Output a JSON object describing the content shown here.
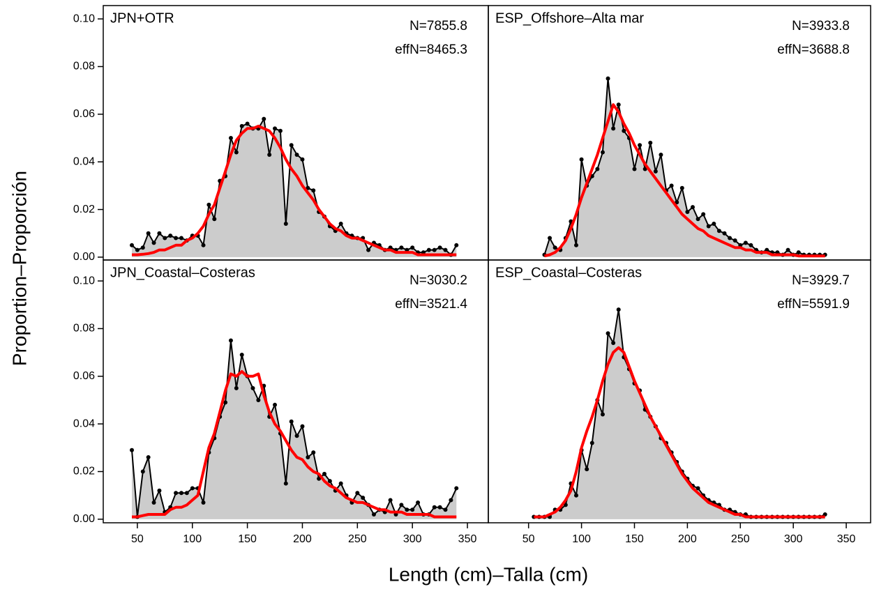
{
  "ylabel": "Proportion–Proporción",
  "xlabel": "Length (cm)–Talla (cm)",
  "chart_data": [
    {
      "type": "area",
      "title": "JPN+OTR",
      "annotations": [
        "N=7855.8",
        "effN=8465.3"
      ],
      "x": [
        45,
        50,
        55,
        60,
        65,
        70,
        75,
        80,
        85,
        90,
        95,
        100,
        105,
        110,
        115,
        120,
        125,
        130,
        135,
        140,
        145,
        150,
        155,
        160,
        165,
        170,
        175,
        180,
        185,
        190,
        195,
        200,
        205,
        210,
        215,
        220,
        225,
        230,
        235,
        240,
        245,
        250,
        255,
        260,
        265,
        270,
        275,
        280,
        285,
        290,
        295,
        300,
        305,
        310,
        315,
        320,
        325,
        330,
        335,
        340
      ],
      "series": [
        {
          "color": "#000000",
          "fill": "#cccccc",
          "markers": true,
          "values": [
            0.005,
            0.003,
            0.004,
            0.01,
            0.006,
            0.01,
            0.008,
            0.009,
            0.008,
            0.008,
            0.007,
            0.009,
            0.009,
            0.005,
            0.022,
            0.016,
            0.032,
            0.034,
            0.05,
            0.044,
            0.055,
            0.056,
            0.054,
            0.054,
            0.058,
            0.043,
            0.054,
            0.053,
            0.014,
            0.047,
            0.043,
            0.041,
            0.029,
            0.028,
            0.019,
            0.017,
            0.013,
            0.011,
            0.014,
            0.01,
            0.009,
            0.008,
            0.008,
            0.003,
            0.006,
            0.005,
            0.003,
            0.004,
            0.003,
            0.004,
            0.003,
            0.004,
            0.002,
            0.002,
            0.003,
            0.003,
            0.004,
            0.003,
            0.001,
            0.005
          ]
        },
        {
          "color": "#ff0000",
          "values": [
            0.001,
            0.001,
            0.0012,
            0.0015,
            0.002,
            0.003,
            0.003,
            0.004,
            0.005,
            0.005,
            0.007,
            0.008,
            0.01,
            0.013,
            0.018,
            0.022,
            0.029,
            0.036,
            0.043,
            0.049,
            0.052,
            0.054,
            0.054,
            0.055,
            0.054,
            0.053,
            0.05,
            0.046,
            0.041,
            0.037,
            0.034,
            0.03,
            0.027,
            0.024,
            0.02,
            0.017,
            0.014,
            0.012,
            0.011,
            0.009,
            0.008,
            0.008,
            0.007,
            0.006,
            0.005,
            0.004,
            0.003,
            0.003,
            0.002,
            0.002,
            0.002,
            0.002,
            0.001,
            0.001,
            0.001,
            0.001,
            0.001,
            0.001,
            0.001,
            0.001
          ]
        }
      ],
      "xlim": [
        19,
        369
      ],
      "ylim": [
        -0.0012,
        0.1056
      ],
      "yticks": [
        {
          "value": 0,
          "label": "0.00"
        },
        {
          "value": 0.02,
          "label": "0.02"
        },
        {
          "value": 0.04,
          "label": "0.04"
        },
        {
          "value": 0.06,
          "label": "0.06"
        },
        {
          "value": 0.08,
          "label": "0.08"
        },
        {
          "value": 0.1,
          "label": "0.10"
        }
      ]
    },
    {
      "type": "area",
      "title": "ESP_Offshore–Alta mar",
      "annotations": [
        "N=3933.8",
        "effN=3688.8"
      ],
      "x": [
        65,
        70,
        75,
        80,
        85,
        90,
        95,
        100,
        105,
        110,
        115,
        120,
        125,
        130,
        135,
        140,
        145,
        150,
        155,
        160,
        165,
        170,
        175,
        180,
        185,
        190,
        195,
        200,
        205,
        210,
        215,
        220,
        225,
        230,
        235,
        240,
        245,
        250,
        255,
        260,
        265,
        270,
        275,
        280,
        285,
        290,
        295,
        300,
        305,
        310,
        315,
        320,
        325,
        330
      ],
      "series": [
        {
          "color": "#000000",
          "fill": "#cccccc",
          "markers": true,
          "values": [
            0.001,
            0.008,
            0.004,
            0.003,
            0.008,
            0.015,
            0.005,
            0.041,
            0.03,
            0.034,
            0.037,
            0.044,
            0.075,
            0.054,
            0.064,
            0.053,
            0.05,
            0.037,
            0.047,
            0.037,
            0.048,
            0.036,
            0.043,
            0.028,
            0.03,
            0.023,
            0.029,
            0.019,
            0.021,
            0.016,
            0.018,
            0.013,
            0.014,
            0.011,
            0.01,
            0.008,
            0.007,
            0.005,
            0.006,
            0.005,
            0.003,
            0.002,
            0.003,
            0.002,
            0.002,
            0.001,
            0.003,
            0.001,
            0.002,
            0.001,
            0.001,
            0.001,
            0.001,
            0.001
          ]
        },
        {
          "color": "#ff0000",
          "values": [
            0.0005,
            0.001,
            0.002,
            0.004,
            0.007,
            0.012,
            0.018,
            0.025,
            0.031,
            0.037,
            0.043,
            0.05,
            0.057,
            0.064,
            0.061,
            0.056,
            0.052,
            0.047,
            0.043,
            0.039,
            0.036,
            0.033,
            0.03,
            0.027,
            0.024,
            0.021,
            0.018,
            0.016,
            0.014,
            0.012,
            0.011,
            0.009,
            0.008,
            0.007,
            0.006,
            0.005,
            0.004,
            0.004,
            0.003,
            0.003,
            0.002,
            0.002,
            0.002,
            0.001,
            0.001,
            0.001,
            0.001,
            0.001,
            0.0005,
            0.0005,
            0.0005,
            0.0005,
            0.0005,
            0.0005
          ]
        }
      ],
      "xlim": [
        12,
        373
      ],
      "ylim": [
        -0.0012,
        0.1056
      ]
    },
    {
      "type": "area",
      "title": "JPN_Coastal–Costeras",
      "annotations": [
        "N=3030.2",
        "effN=3521.4"
      ],
      "x": [
        45,
        50,
        55,
        60,
        65,
        70,
        75,
        80,
        85,
        90,
        95,
        100,
        105,
        110,
        115,
        120,
        125,
        130,
        135,
        140,
        145,
        150,
        155,
        160,
        165,
        170,
        175,
        180,
        185,
        190,
        195,
        200,
        205,
        210,
        215,
        220,
        225,
        230,
        235,
        240,
        245,
        250,
        255,
        260,
        265,
        270,
        275,
        280,
        285,
        290,
        295,
        300,
        305,
        310,
        315,
        320,
        325,
        330,
        335,
        340
      ],
      "series": [
        {
          "color": "#000000",
          "fill": "#cccccc",
          "markers": true,
          "values": [
            0.029,
            0.001,
            0.02,
            0.026,
            0.007,
            0.012,
            0.003,
            0.005,
            0.011,
            0.011,
            0.011,
            0.013,
            0.013,
            0.007,
            0.028,
            0.034,
            0.043,
            0.049,
            0.075,
            0.055,
            0.069,
            0.06,
            0.055,
            0.05,
            0.056,
            0.043,
            0.048,
            0.036,
            0.015,
            0.041,
            0.035,
            0.039,
            0.026,
            0.028,
            0.017,
            0.019,
            0.016,
            0.012,
            0.015,
            0.01,
            0.007,
            0.011,
            0.009,
            0.006,
            0.002,
            0.004,
            0.003,
            0.008,
            0.002,
            0.006,
            0.004,
            0.004,
            0.007,
            0.002,
            0.002,
            0.005,
            0.005,
            0.004,
            0.008,
            0.013
          ]
        },
        {
          "color": "#ff0000",
          "values": [
            0.001,
            0.001,
            0.0015,
            0.002,
            0.002,
            0.002,
            0.002,
            0.004,
            0.005,
            0.005,
            0.006,
            0.008,
            0.01,
            0.02,
            0.03,
            0.036,
            0.045,
            0.054,
            0.061,
            0.06,
            0.062,
            0.06,
            0.06,
            0.061,
            0.052,
            0.045,
            0.04,
            0.037,
            0.033,
            0.029,
            0.026,
            0.025,
            0.022,
            0.02,
            0.019,
            0.016,
            0.014,
            0.013,
            0.011,
            0.009,
            0.008,
            0.007,
            0.007,
            0.006,
            0.005,
            0.004,
            0.004,
            0.003,
            0.003,
            0.003,
            0.002,
            0.002,
            0.002,
            0.002,
            0.002,
            0.001,
            0.001,
            0.001,
            0.001,
            0.001
          ]
        }
      ],
      "xlim": [
        19,
        369
      ],
      "ylim": [
        -0.0015,
        0.1088
      ],
      "xticks": [
        50,
        100,
        150,
        200,
        250,
        300,
        350
      ],
      "yticks": [
        {
          "value": 0,
          "label": "0.00"
        },
        {
          "value": 0.02,
          "label": "0.02"
        },
        {
          "value": 0.04,
          "label": "0.04"
        },
        {
          "value": 0.06,
          "label": "0.06"
        },
        {
          "value": 0.08,
          "label": "0.08"
        },
        {
          "value": 0.1,
          "label": "0.10"
        }
      ]
    },
    {
      "type": "area",
      "title": "ESP_Coastal–Costeras",
      "annotations": [
        "N=3929.7",
        "effN=5591.9"
      ],
      "x": [
        55,
        60,
        65,
        70,
        75,
        80,
        85,
        90,
        95,
        100,
        105,
        110,
        115,
        120,
        125,
        130,
        135,
        140,
        145,
        150,
        155,
        160,
        165,
        170,
        175,
        180,
        185,
        190,
        195,
        200,
        205,
        210,
        215,
        220,
        225,
        230,
        235,
        240,
        245,
        250,
        255,
        260,
        265,
        270,
        275,
        280,
        285,
        290,
        295,
        300,
        305,
        310,
        315,
        320,
        325,
        330
      ],
      "series": [
        {
          "color": "#000000",
          "fill": "#cccccc",
          "markers": true,
          "values": [
            0.001,
            0.001,
            0.001,
            0.001,
            0.004,
            0.004,
            0.006,
            0.015,
            0.01,
            0.029,
            0.021,
            0.032,
            0.05,
            0.044,
            0.078,
            0.074,
            0.088,
            0.068,
            0.063,
            0.057,
            0.054,
            0.046,
            0.043,
            0.039,
            0.034,
            0.032,
            0.028,
            0.024,
            0.02,
            0.017,
            0.014,
            0.013,
            0.01,
            0.008,
            0.007,
            0.006,
            0.004,
            0.004,
            0.003,
            0.002,
            0.002,
            0.001,
            0.001,
            0.001,
            0.001,
            0.001,
            0.001,
            0.001,
            0.001,
            0.001,
            0.001,
            0.001,
            0.001,
            0.001,
            0.001,
            0.002
          ]
        },
        {
          "color": "#ff0000",
          "values": [
            0.001,
            0.001,
            0.001,
            0.002,
            0.003,
            0.005,
            0.008,
            0.012,
            0.02,
            0.03,
            0.037,
            0.043,
            0.05,
            0.058,
            0.065,
            0.07,
            0.072,
            0.07,
            0.064,
            0.058,
            0.053,
            0.048,
            0.043,
            0.039,
            0.035,
            0.031,
            0.027,
            0.023,
            0.019,
            0.016,
            0.013,
            0.011,
            0.009,
            0.007,
            0.006,
            0.005,
            0.004,
            0.003,
            0.002,
            0.002,
            0.001,
            0.001,
            0.001,
            0.001,
            0.001,
            0.001,
            0.001,
            0.001,
            0.001,
            0.001,
            0.001,
            0.001,
            0.001,
            0.001,
            0.001,
            0.001
          ]
        }
      ],
      "xlim": [
        12,
        373
      ],
      "ylim": [
        -0.0015,
        0.1088
      ],
      "xticks": [
        50,
        100,
        150,
        200,
        250,
        300,
        350
      ]
    }
  ]
}
